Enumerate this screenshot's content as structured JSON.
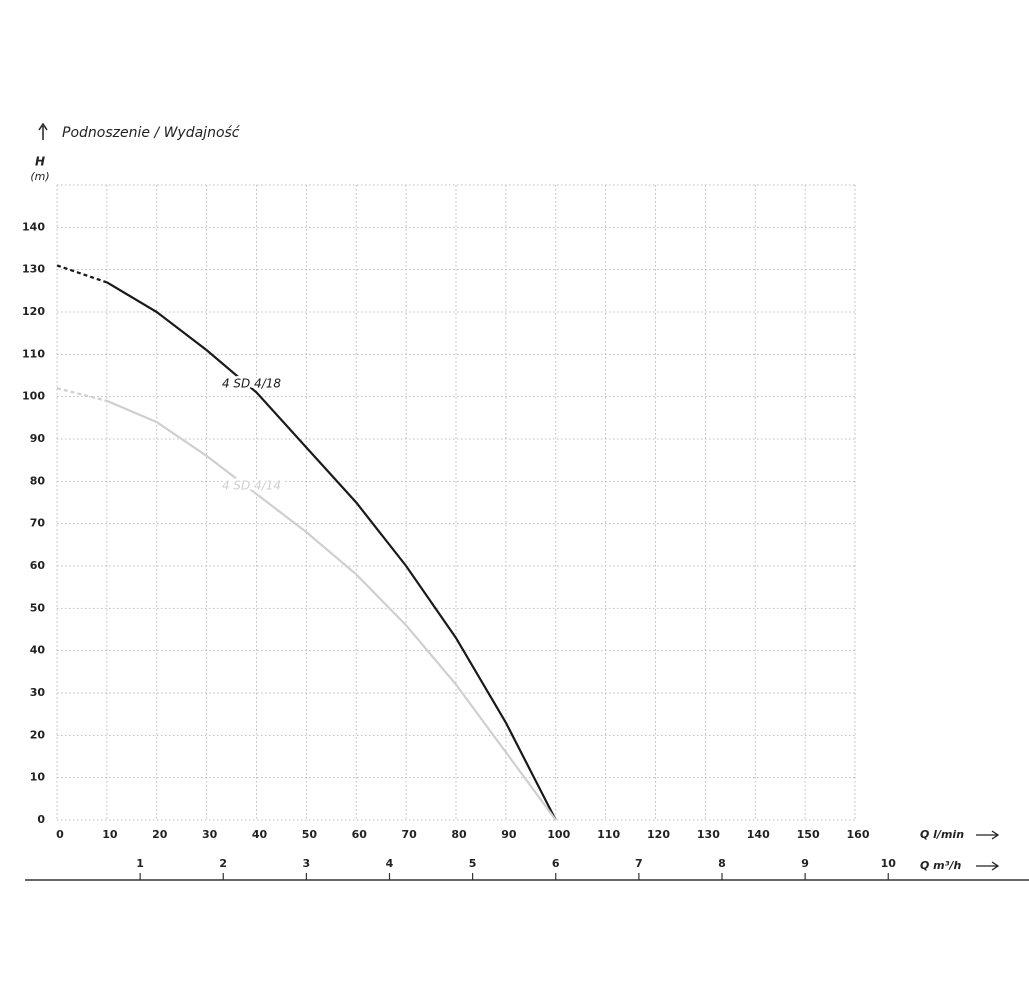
{
  "chart_data": {
    "type": "line",
    "title": "Podnoszenie / Wydajność",
    "y_label": "H",
    "y_unit": "(m)",
    "x_label": "Q l/min",
    "x2_label": "Q m³/h",
    "x": [
      0,
      10,
      20,
      30,
      40,
      50,
      60,
      70,
      80,
      90,
      100
    ],
    "series": [
      {
        "name": "4 SD 4/18",
        "color": "#1a1a1a",
        "values": [
          131,
          127,
          120,
          111,
          101,
          88,
          75,
          60,
          43,
          23,
          0
        ]
      },
      {
        "name": "4 SD 4/14",
        "color": "#cfcfcf",
        "values": [
          102,
          99,
          94,
          86,
          77,
          68,
          58,
          46,
          32,
          16,
          0
        ]
      }
    ],
    "xlim": [
      0,
      160
    ],
    "xticks": [
      0,
      10,
      20,
      30,
      40,
      50,
      60,
      70,
      80,
      90,
      100,
      110,
      120,
      130,
      140,
      150,
      160
    ],
    "x2lim": [
      0,
      9.6
    ],
    "x2ticks": [
      1,
      2,
      3,
      4,
      5,
      6,
      7,
      8,
      9,
      10
    ],
    "ylim": [
      0,
      150
    ],
    "yticks": [
      0,
      10,
      20,
      30,
      40,
      50,
      60,
      70,
      80,
      90,
      100,
      110,
      120,
      130,
      140
    ],
    "grid": true
  }
}
